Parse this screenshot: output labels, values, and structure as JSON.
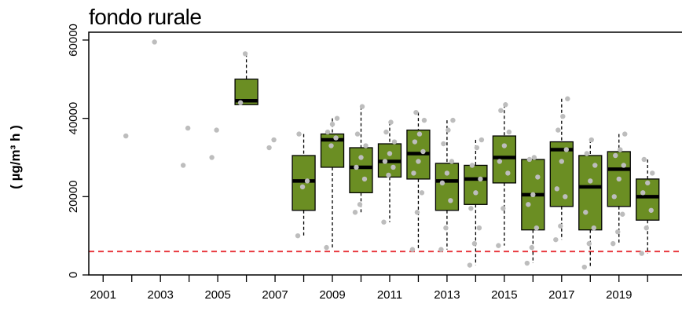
{
  "chart_data": {
    "type": "boxplot",
    "title": "fondo rurale",
    "xlabel": "",
    "ylabel": "( µg/m³ h )",
    "ylim": [
      0,
      62000
    ],
    "xlim": [
      2000.5,
      2021.2
    ],
    "yticks": [
      0,
      20000,
      40000,
      60000
    ],
    "xtick_positions": [
      2001,
      2002,
      2003,
      2004,
      2005,
      2006,
      2007,
      2008,
      2009,
      2010,
      2011,
      2012,
      2013,
      2014,
      2015,
      2016,
      2017,
      2018,
      2019,
      2020
    ],
    "xtick_labels": [
      "2001",
      "2003",
      "2005",
      "2007",
      "2009",
      "2011",
      "2013",
      "2015",
      "2017",
      "2019"
    ],
    "threshold": {
      "value": 6000,
      "color": "#e8393f",
      "style": "dashed"
    },
    "box_color": "#6b8e23",
    "point_color": "#bdbdbd",
    "boxes": [
      {
        "year": 2006,
        "min": 43500,
        "q1": 43500,
        "median": 44500,
        "q3": 50000,
        "max": 56500
      },
      {
        "year": 2008,
        "min": 10000,
        "q1": 16500,
        "median": 24000,
        "q3": 30500,
        "max": 36000
      },
      {
        "year": 2009,
        "min": 7000,
        "q1": 27500,
        "median": 34500,
        "q3": 36000,
        "max": 40000
      },
      {
        "year": 2010,
        "min": 16000,
        "q1": 21000,
        "median": 27500,
        "q3": 32500,
        "max": 43000
      },
      {
        "year": 2011,
        "min": 13500,
        "q1": 25000,
        "median": 29000,
        "q3": 33500,
        "max": 39000
      },
      {
        "year": 2012,
        "min": 6500,
        "q1": 24500,
        "median": 31000,
        "q3": 37000,
        "max": 41500
      },
      {
        "year": 2013,
        "min": 6500,
        "q1": 16500,
        "median": 24000,
        "q3": 28500,
        "max": 39500
      },
      {
        "year": 2014,
        "min": 2500,
        "q1": 18000,
        "median": 24500,
        "q3": 28000,
        "max": 34500
      },
      {
        "year": 2015,
        "min": 7500,
        "q1": 23500,
        "median": 30000,
        "q3": 35500,
        "max": 43500
      },
      {
        "year": 2016,
        "min": 3000,
        "q1": 11500,
        "median": 20500,
        "q3": 29500,
        "max": 30000
      },
      {
        "year": 2017,
        "min": 9000,
        "q1": 17500,
        "median": 32000,
        "q3": 34000,
        "max": 45000
      },
      {
        "year": 2018,
        "min": 2000,
        "q1": 11500,
        "median": 22500,
        "q3": 30500,
        "max": 34500
      },
      {
        "year": 2019,
        "min": 8000,
        "q1": 17500,
        "median": 27000,
        "q3": 31500,
        "max": 36000
      },
      {
        "year": 2020,
        "min": 5500,
        "q1": 14000,
        "median": 20000,
        "q3": 24500,
        "max": 29500
      }
    ],
    "points": [
      {
        "year": 2002,
        "values": [
          35500
        ]
      },
      {
        "year": 2003,
        "values": [
          59500
        ]
      },
      {
        "year": 2004,
        "values": [
          28000,
          37500
        ]
      },
      {
        "year": 2005,
        "values": [
          30000,
          37000
        ]
      },
      {
        "year": 2006,
        "values": [
          44000,
          56500
        ]
      },
      {
        "year": 2007,
        "values": [
          32500,
          34500
        ]
      },
      {
        "year": 2008,
        "values": [
          10000,
          22500,
          24000,
          36000
        ]
      },
      {
        "year": 2009,
        "values": [
          7000,
          33000,
          35000,
          36500,
          38500,
          40000
        ]
      },
      {
        "year": 2010,
        "values": [
          16000,
          18000,
          24500,
          27500,
          30000,
          33000,
          36000,
          43000
        ]
      },
      {
        "year": 2011,
        "values": [
          13500,
          25500,
          27500,
          29000,
          31000,
          34000,
          36500,
          39000
        ]
      },
      {
        "year": 2012,
        "values": [
          6500,
          16000,
          21000,
          26000,
          29000,
          31500,
          34000,
          36000,
          39500,
          41500
        ]
      },
      {
        "year": 2013,
        "values": [
          6500,
          12000,
          19000,
          23500,
          26000,
          29000,
          33500,
          37000,
          39500
        ]
      },
      {
        "year": 2014,
        "values": [
          2500,
          8000,
          12000,
          17000,
          21000,
          24500,
          28000,
          32500,
          34500
        ]
      },
      {
        "year": 2015,
        "values": [
          7500,
          17000,
          26000,
          29000,
          33000,
          36500,
          42000,
          43500
        ]
      },
      {
        "year": 2016,
        "values": [
          3000,
          7000,
          12000,
          18000,
          20500,
          25000,
          29500,
          30000
        ]
      },
      {
        "year": 2017,
        "values": [
          9000,
          12500,
          20000,
          22000,
          29000,
          32000,
          37000,
          40500,
          45000
        ]
      },
      {
        "year": 2018,
        "values": [
          2000,
          8000,
          12000,
          16000,
          24000,
          28000,
          31000,
          34500
        ]
      },
      {
        "year": 2019,
        "values": [
          8000,
          11000,
          15500,
          20000,
          24500,
          28000,
          30500,
          32000,
          36000
        ]
      },
      {
        "year": 2020,
        "values": [
          5500,
          12000,
          16500,
          21000,
          23500,
          26000,
          29500
        ]
      }
    ]
  }
}
